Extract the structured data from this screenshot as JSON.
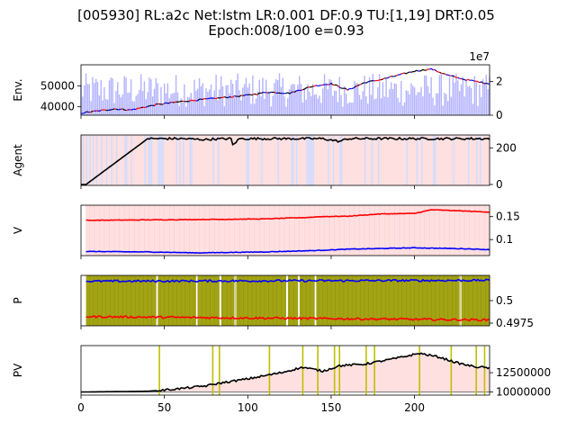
{
  "title_line1": "[005930] RL:a2c Net:lstm LR:0.001 DF:0.9 TU:[1,19] DRT:0.05",
  "title_line2": "Epoch:008/100 e=0.93",
  "chart_data": [
    {
      "type": "line",
      "panel": "env",
      "ylabel": "Env.",
      "xlim": [
        0,
        245
      ],
      "ylim": [
        36000,
        60000
      ],
      "yticks": [
        40000,
        50000
      ],
      "y2lim": [
        0,
        30000000
      ],
      "y2ticks": [
        "0",
        "2"
      ],
      "y2_offset_label": "1e7",
      "price_keypoints": [
        [
          0,
          37000
        ],
        [
          20,
          39000
        ],
        [
          30,
          38500
        ],
        [
          45,
          41000
        ],
        [
          60,
          42500
        ],
        [
          80,
          44000
        ],
        [
          100,
          45500
        ],
        [
          112,
          47000
        ],
        [
          125,
          46500
        ],
        [
          140,
          50000
        ],
        [
          150,
          51000
        ],
        [
          160,
          48000
        ],
        [
          170,
          51500
        ],
        [
          180,
          53000
        ],
        [
          190,
          55000
        ],
        [
          200,
          57000
        ],
        [
          210,
          58000
        ],
        [
          220,
          55000
        ],
        [
          230,
          53000
        ],
        [
          245,
          51000
        ]
      ],
      "volume_range": [
        5000000,
        25000000
      ],
      "colors": {
        "price": "#000000",
        "buy": "#ff0000",
        "sell": "#0000ff",
        "volume": "#b3b3ff"
      }
    },
    {
      "type": "line",
      "panel": "agent",
      "ylabel": "Agent",
      "xlim": [
        0,
        245
      ],
      "ylim": [
        -5,
        270
      ],
      "yticks": [
        0,
        200
      ],
      "keypoints": [
        [
          0,
          0
        ],
        [
          3,
          0
        ],
        [
          40,
          250
        ],
        [
          60,
          250
        ],
        [
          75,
          245
        ],
        [
          80,
          248
        ],
        [
          90,
          250
        ],
        [
          91,
          215
        ],
        [
          95,
          250
        ],
        [
          145,
          250
        ],
        [
          155,
          235
        ],
        [
          160,
          250
        ],
        [
          245,
          250
        ]
      ],
      "background": "#ffe0e0",
      "colors": {
        "line": "#000000",
        "stripe": "#d0dcff"
      }
    },
    {
      "type": "line",
      "panel": "value",
      "ylabel": "V",
      "xlim": [
        0,
        245
      ],
      "ylim": [
        0.065,
        0.175
      ],
      "yticks": [
        0.1,
        0.15
      ],
      "series": [
        {
          "color": "#ff0000",
          "keypoints": [
            [
              3,
              0.142
            ],
            [
              80,
              0.144
            ],
            [
              110,
              0.145
            ],
            [
              125,
              0.147
            ],
            [
              135,
              0.148
            ],
            [
              143,
              0.15
            ],
            [
              160,
              0.151
            ],
            [
              180,
              0.156
            ],
            [
              200,
              0.157
            ],
            [
              210,
              0.165
            ],
            [
              225,
              0.163
            ],
            [
              245,
              0.16
            ]
          ]
        },
        {
          "color": "#0000ff",
          "keypoints": [
            [
              3,
              0.074
            ],
            [
              40,
              0.073
            ],
            [
              70,
              0.071
            ],
            [
              110,
              0.073
            ],
            [
              140,
              0.076
            ],
            [
              160,
              0.079
            ],
            [
              200,
              0.082
            ],
            [
              230,
              0.08
            ],
            [
              245,
              0.078
            ]
          ]
        }
      ],
      "background": "#ffe0e0"
    },
    {
      "type": "line",
      "panel": "policy",
      "ylabel": "P",
      "xlim": [
        0,
        245
      ],
      "ylim": [
        0.4972,
        0.5028
      ],
      "yticks": [
        0.4975,
        0.5
      ],
      "series": [
        {
          "color": "#0000ff",
          "keypoints": [
            [
              3,
              0.50215
            ],
            [
              245,
              0.50225
            ]
          ]
        },
        {
          "color": "#ff0000",
          "keypoints": [
            [
              3,
              0.49822
            ],
            [
              245,
              0.49785
            ]
          ]
        }
      ],
      "background": "#a3a314",
      "gap_color": "#ffffff"
    },
    {
      "type": "line",
      "panel": "pv",
      "ylabel": "PV",
      "xlim": [
        0,
        245
      ],
      "xticks": [
        0,
        50,
        100,
        150,
        200
      ],
      "ylim": [
        9600000,
        16000000
      ],
      "yticks": [
        "10000000",
        "12500000"
      ],
      "baseline": 10000000,
      "keypoints": [
        [
          0,
          10000000
        ],
        [
          20,
          10050000
        ],
        [
          40,
          10100000
        ],
        [
          50,
          10250000
        ],
        [
          60,
          10450000
        ],
        [
          75,
          10800000
        ],
        [
          82,
          11100000
        ],
        [
          100,
          11700000
        ],
        [
          120,
          12500000
        ],
        [
          133,
          13200000
        ],
        [
          145,
          12700000
        ],
        [
          155,
          13400000
        ],
        [
          170,
          13600000
        ],
        [
          180,
          14000000
        ],
        [
          190,
          14400000
        ],
        [
          203,
          15000000
        ],
        [
          215,
          14500000
        ],
        [
          225,
          13800000
        ],
        [
          235,
          13300000
        ],
        [
          245,
          13100000
        ]
      ],
      "exploration_x": [
        47,
        79,
        83,
        113,
        133,
        142,
        152,
        155,
        171,
        176,
        203,
        222,
        237,
        242
      ],
      "colors": {
        "line": "#000000",
        "fill": "#ffe0e0",
        "marker": "#bfbf00"
      }
    }
  ]
}
